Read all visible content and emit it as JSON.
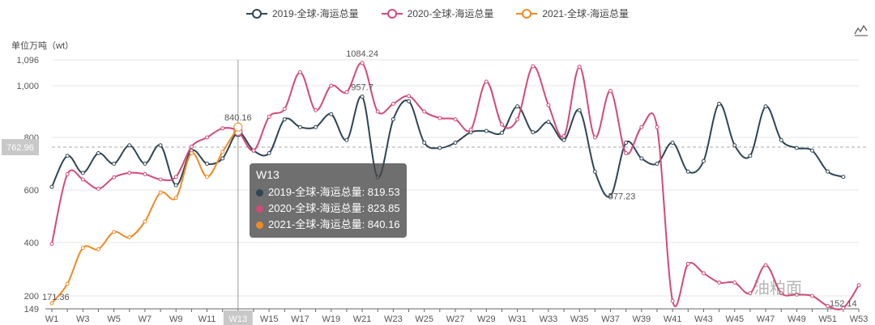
{
  "legend": [
    {
      "label": "2019-全球-海运总量",
      "color": "#2f4554"
    },
    {
      "label": "2020-全球-海运总量",
      "color": "#d14a7a"
    },
    {
      "label": "2021-全球-海运总量",
      "color": "#f08a24"
    }
  ],
  "unit_label": "单位万吨（wt）",
  "watermark": "油粕面",
  "tooltip": {
    "title": "W13",
    "rows": [
      {
        "text": "2019-全球-海运总量: 819.53",
        "color": "#2f4554"
      },
      {
        "text": "2020-全球-海运总量: 823.85",
        "color": "#d14a7a"
      },
      {
        "text": "2021-全球-海运总量: 840.16",
        "color": "#f08a24"
      }
    ]
  },
  "chart_data": {
    "type": "line",
    "x": [
      "W1",
      "W2",
      "W3",
      "W4",
      "W5",
      "W6",
      "W7",
      "W8",
      "W9",
      "W10",
      "W11",
      "W12",
      "W13",
      "W14",
      "W15",
      "W16",
      "W17",
      "W18",
      "W19",
      "W20",
      "W21",
      "W22",
      "W23",
      "W24",
      "W25",
      "W26",
      "W27",
      "W28",
      "W29",
      "W30",
      "W31",
      "W32",
      "W33",
      "W34",
      "W35",
      "W36",
      "W37",
      "W38",
      "W39",
      "W40",
      "W41",
      "W42",
      "W43",
      "W44",
      "W45",
      "W46",
      "W47",
      "W48",
      "W49",
      "W50",
      "W51",
      "W52",
      "W53"
    ],
    "x_tick_labels": [
      "W1",
      "W3",
      "W5",
      "W7",
      "W9",
      "W11",
      "W13",
      "W15",
      "W17",
      "W19",
      "W21",
      "W23",
      "W25",
      "W27",
      "W29",
      "W31",
      "W33",
      "W35",
      "W37",
      "W39",
      "W41",
      "W43",
      "W45",
      "W47",
      "W49",
      "W51",
      "W53"
    ],
    "y_ticks": [
      149,
      200,
      400,
      600,
      800,
      1000,
      1096
    ],
    "ylim": [
      149,
      1096
    ],
    "highlight_x": "W13",
    "marker_value": 762.96,
    "series": [
      {
        "name": "2019-全球-海运总量",
        "color": "#2f4554",
        "values": [
          612,
          730,
          665,
          740,
          700,
          770,
          700,
          770,
          618,
          750,
          700,
          720,
          819.53,
          750,
          740,
          870,
          840,
          840,
          890,
          790,
          957.7,
          648,
          870,
          940,
          780,
          760,
          780,
          820,
          825,
          818,
          920,
          820,
          860,
          790,
          905,
          670,
          577.23,
          780,
          720,
          700,
          780,
          670,
          710,
          930,
          770,
          730,
          920,
          790,
          760,
          750,
          670,
          650,
          null
        ]
      },
      {
        "name": "2020-全球-海运总量",
        "color": "#d14a7a",
        "values": [
          395,
          660,
          640,
          605,
          648,
          665,
          660,
          640,
          650,
          765,
          800,
          835,
          823.85,
          750,
          880,
          910,
          1050,
          905,
          1000,
          975,
          1084.24,
          900,
          930,
          960,
          900,
          875,
          870,
          830,
          1015,
          850,
          870,
          1072,
          925,
          805,
          1070,
          800,
          980,
          740,
          840,
          840,
          180,
          320,
          285,
          250,
          250,
          210,
          315,
          210,
          205,
          200,
          160,
          152.14,
          240
        ]
      },
      {
        "name": "2021-全球-海运总量",
        "color": "#f08a24",
        "values": [
          171.36,
          245,
          380,
          375,
          440,
          420,
          480,
          590,
          570,
          740,
          650,
          745,
          840.16,
          null,
          null,
          null,
          null,
          null,
          null,
          null,
          null,
          null,
          null,
          null,
          null,
          null,
          null,
          null,
          null,
          null,
          null,
          null,
          null,
          null,
          null,
          null,
          null,
          null,
          null,
          null,
          null,
          null,
          null,
          null,
          null,
          null,
          null,
          null,
          null,
          null,
          null,
          null,
          null
        ]
      }
    ],
    "data_labels": [
      {
        "series": 1,
        "x": "W21",
        "text": "1084.24"
      },
      {
        "series": 0,
        "x": "W21",
        "text": "957.7"
      },
      {
        "series": 2,
        "x": "W13",
        "text": "840.16"
      },
      {
        "series": 0,
        "x": "W37",
        "text": "577.23"
      },
      {
        "series": 2,
        "x": "W1",
        "text": "171.36"
      },
      {
        "series": 1,
        "x": "W52",
        "text": "152.14"
      }
    ]
  }
}
